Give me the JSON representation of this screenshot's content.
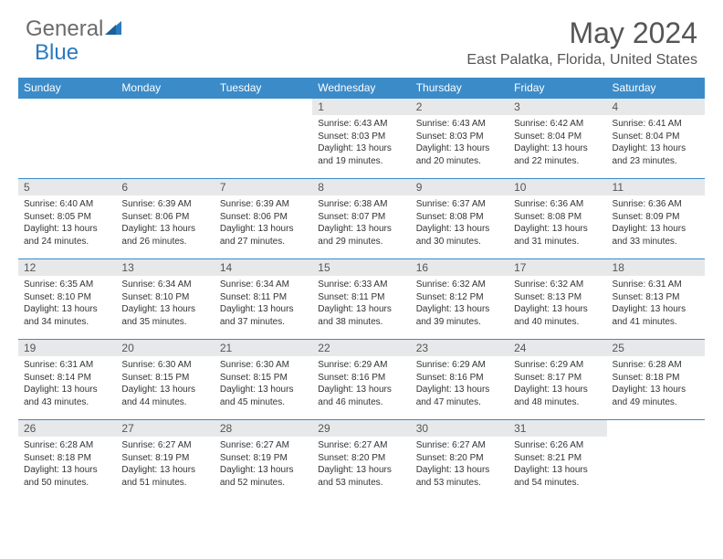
{
  "brand": {
    "part1": "General",
    "part2": "Blue"
  },
  "title": "May 2024",
  "location": "East Palatka, Florida, United States",
  "colors": {
    "header_bg": "#3b8bc9",
    "header_text": "#ffffff",
    "daynum_bg": "#e7e8ea",
    "row_border": "#3b8bc9",
    "brand_gray": "#6b6b6b",
    "brand_blue": "#2a7ac0"
  },
  "day_headers": [
    "Sunday",
    "Monday",
    "Tuesday",
    "Wednesday",
    "Thursday",
    "Friday",
    "Saturday"
  ],
  "weeks": [
    [
      {
        "n": "",
        "sr": "",
        "ss": "",
        "dl": ""
      },
      {
        "n": "",
        "sr": "",
        "ss": "",
        "dl": ""
      },
      {
        "n": "",
        "sr": "",
        "ss": "",
        "dl": ""
      },
      {
        "n": "1",
        "sr": "6:43 AM",
        "ss": "8:03 PM",
        "dl": "13 hours and 19 minutes."
      },
      {
        "n": "2",
        "sr": "6:43 AM",
        "ss": "8:03 PM",
        "dl": "13 hours and 20 minutes."
      },
      {
        "n": "3",
        "sr": "6:42 AM",
        "ss": "8:04 PM",
        "dl": "13 hours and 22 minutes."
      },
      {
        "n": "4",
        "sr": "6:41 AM",
        "ss": "8:04 PM",
        "dl": "13 hours and 23 minutes."
      }
    ],
    [
      {
        "n": "5",
        "sr": "6:40 AM",
        "ss": "8:05 PM",
        "dl": "13 hours and 24 minutes."
      },
      {
        "n": "6",
        "sr": "6:39 AM",
        "ss": "8:06 PM",
        "dl": "13 hours and 26 minutes."
      },
      {
        "n": "7",
        "sr": "6:39 AM",
        "ss": "8:06 PM",
        "dl": "13 hours and 27 minutes."
      },
      {
        "n": "8",
        "sr": "6:38 AM",
        "ss": "8:07 PM",
        "dl": "13 hours and 29 minutes."
      },
      {
        "n": "9",
        "sr": "6:37 AM",
        "ss": "8:08 PM",
        "dl": "13 hours and 30 minutes."
      },
      {
        "n": "10",
        "sr": "6:36 AM",
        "ss": "8:08 PM",
        "dl": "13 hours and 31 minutes."
      },
      {
        "n": "11",
        "sr": "6:36 AM",
        "ss": "8:09 PM",
        "dl": "13 hours and 33 minutes."
      }
    ],
    [
      {
        "n": "12",
        "sr": "6:35 AM",
        "ss": "8:10 PM",
        "dl": "13 hours and 34 minutes."
      },
      {
        "n": "13",
        "sr": "6:34 AM",
        "ss": "8:10 PM",
        "dl": "13 hours and 35 minutes."
      },
      {
        "n": "14",
        "sr": "6:34 AM",
        "ss": "8:11 PM",
        "dl": "13 hours and 37 minutes."
      },
      {
        "n": "15",
        "sr": "6:33 AM",
        "ss": "8:11 PM",
        "dl": "13 hours and 38 minutes."
      },
      {
        "n": "16",
        "sr": "6:32 AM",
        "ss": "8:12 PM",
        "dl": "13 hours and 39 minutes."
      },
      {
        "n": "17",
        "sr": "6:32 AM",
        "ss": "8:13 PM",
        "dl": "13 hours and 40 minutes."
      },
      {
        "n": "18",
        "sr": "6:31 AM",
        "ss": "8:13 PM",
        "dl": "13 hours and 41 minutes."
      }
    ],
    [
      {
        "n": "19",
        "sr": "6:31 AM",
        "ss": "8:14 PM",
        "dl": "13 hours and 43 minutes."
      },
      {
        "n": "20",
        "sr": "6:30 AM",
        "ss": "8:15 PM",
        "dl": "13 hours and 44 minutes."
      },
      {
        "n": "21",
        "sr": "6:30 AM",
        "ss": "8:15 PM",
        "dl": "13 hours and 45 minutes."
      },
      {
        "n": "22",
        "sr": "6:29 AM",
        "ss": "8:16 PM",
        "dl": "13 hours and 46 minutes."
      },
      {
        "n": "23",
        "sr": "6:29 AM",
        "ss": "8:16 PM",
        "dl": "13 hours and 47 minutes."
      },
      {
        "n": "24",
        "sr": "6:29 AM",
        "ss": "8:17 PM",
        "dl": "13 hours and 48 minutes."
      },
      {
        "n": "25",
        "sr": "6:28 AM",
        "ss": "8:18 PM",
        "dl": "13 hours and 49 minutes."
      }
    ],
    [
      {
        "n": "26",
        "sr": "6:28 AM",
        "ss": "8:18 PM",
        "dl": "13 hours and 50 minutes."
      },
      {
        "n": "27",
        "sr": "6:27 AM",
        "ss": "8:19 PM",
        "dl": "13 hours and 51 minutes."
      },
      {
        "n": "28",
        "sr": "6:27 AM",
        "ss": "8:19 PM",
        "dl": "13 hours and 52 minutes."
      },
      {
        "n": "29",
        "sr": "6:27 AM",
        "ss": "8:20 PM",
        "dl": "13 hours and 53 minutes."
      },
      {
        "n": "30",
        "sr": "6:27 AM",
        "ss": "8:20 PM",
        "dl": "13 hours and 53 minutes."
      },
      {
        "n": "31",
        "sr": "6:26 AM",
        "ss": "8:21 PM",
        "dl": "13 hours and 54 minutes."
      },
      {
        "n": "",
        "sr": "",
        "ss": "",
        "dl": ""
      }
    ]
  ],
  "labels": {
    "sunrise": "Sunrise:",
    "sunset": "Sunset:",
    "daylight": "Daylight:"
  }
}
